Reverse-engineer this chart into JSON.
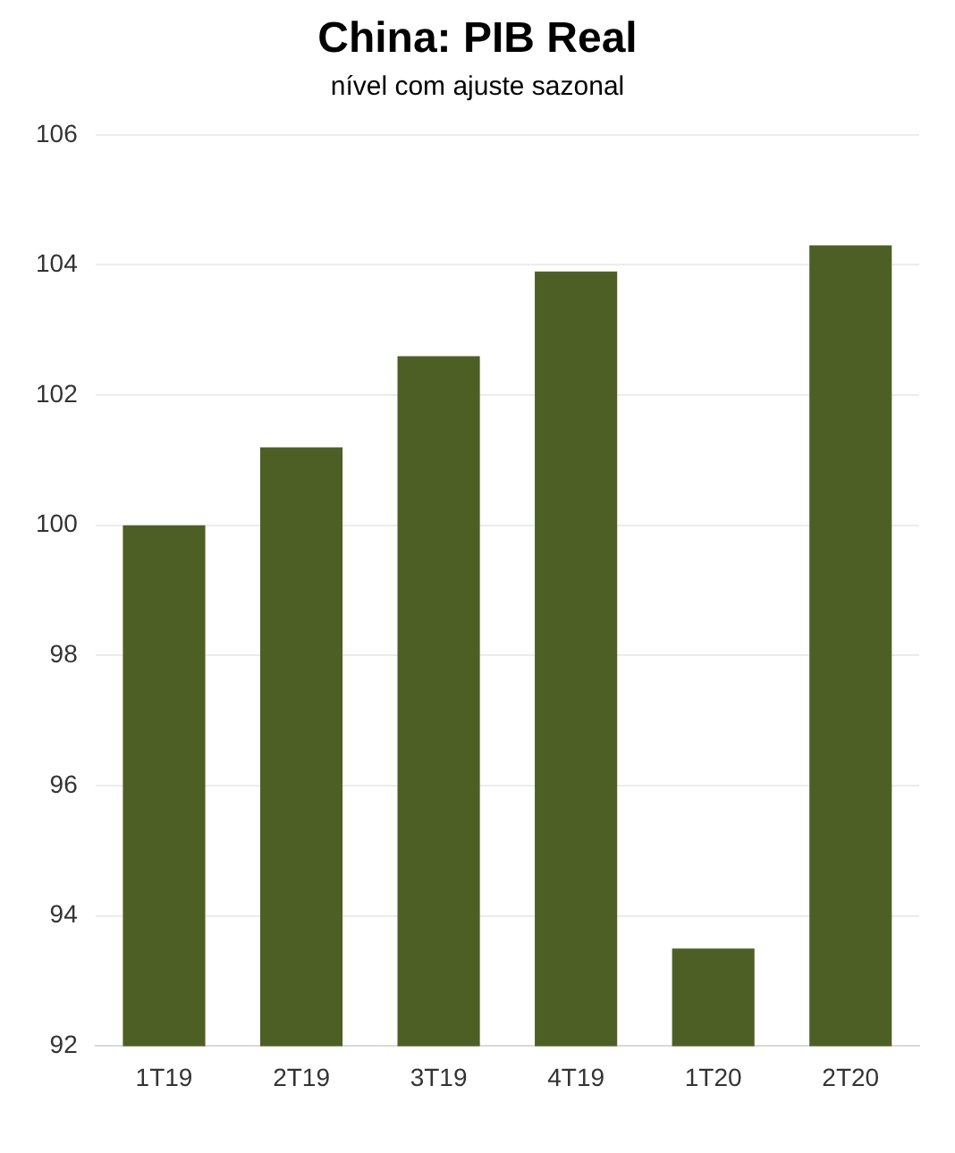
{
  "chart_data": {
    "type": "bar",
    "title": "China: PIB Real",
    "subtitle": "nível com ajuste sazonal",
    "categories": [
      "1T19",
      "2T19",
      "3T19",
      "4T19",
      "1T20",
      "2T20"
    ],
    "values": [
      100.0,
      101.2,
      102.6,
      103.9,
      93.5,
      104.3
    ],
    "color": "#4e5f26",
    "ylim": [
      92,
      106
    ],
    "yticks": [
      92,
      94,
      96,
      98,
      100,
      102,
      104,
      106
    ],
    "grid": "y"
  }
}
